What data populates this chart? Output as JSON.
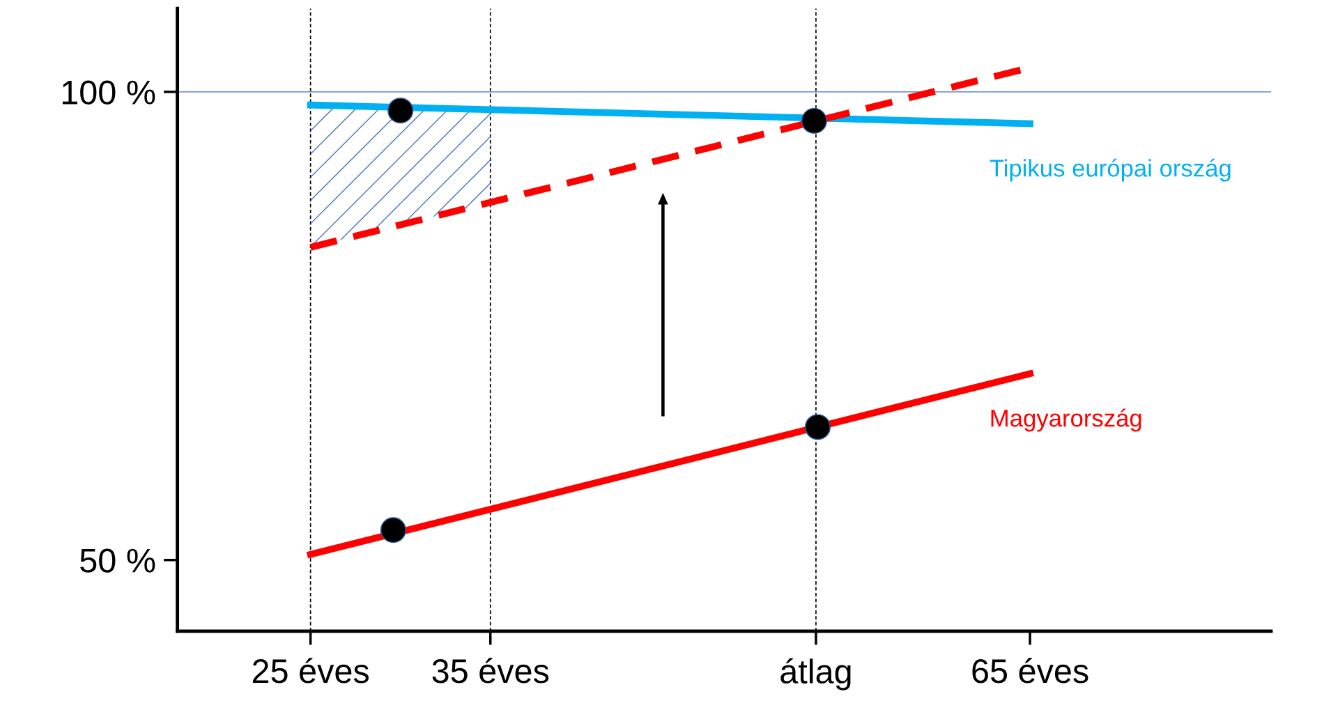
{
  "chart_data": {
    "type": "line",
    "xlim": [
      17.6,
      78.4
    ],
    "ylim": [
      42.4,
      108.9
    ],
    "xticks": [
      {
        "value": 25,
        "label": "25 éves"
      },
      {
        "value": 35,
        "label": "35 éves"
      },
      {
        "value": 53.1,
        "label": "átlag"
      },
      {
        "value": 65,
        "label": "65 éves"
      }
    ],
    "yticks": [
      {
        "value": 50,
        "label": "50 %"
      },
      {
        "value": 100,
        "label": "100 %"
      }
    ],
    "grid": false,
    "legend": false,
    "series": [
      {
        "name": "Tipikus európai ország",
        "color": "#00b0f0",
        "x": [
          25,
          65
        ],
        "values": [
          98.6,
          96.6
        ],
        "line_style": "solid"
      },
      {
        "color": "#ff0000",
        "x": [
          25,
          64.6
        ],
        "values": [
          83.4,
          102.4
        ],
        "line_style": "dashed"
      },
      {
        "name": "Magyarország",
        "color": "#ff0000",
        "x": [
          25,
          65
        ],
        "values": [
          50.6,
          69.9
        ],
        "line_style": "solid"
      },
      {
        "type": "scatter",
        "color": "#000000",
        "x": [
          30.0,
          53.0,
          29.6,
          53.2
        ],
        "values": [
          98.0,
          96.9,
          53.2,
          64.2
        ],
        "marker": "circle"
      }
    ],
    "ref_lines": [
      {
        "axis": "y",
        "value": 100,
        "color": "#4472c4",
        "line_style": "solid"
      },
      {
        "axis": "x",
        "value": 25,
        "color": "#000000",
        "line_style": "dashed"
      },
      {
        "axis": "x",
        "value": 35,
        "color": "#000000",
        "line_style": "dashed"
      },
      {
        "axis": "x",
        "value": 53.1,
        "color": "#000000",
        "line_style": "dashed"
      }
    ],
    "bands": [
      {
        "axis": "x",
        "from": 25,
        "to": 35,
        "color": "#4472c4"
      }
    ]
  }
}
